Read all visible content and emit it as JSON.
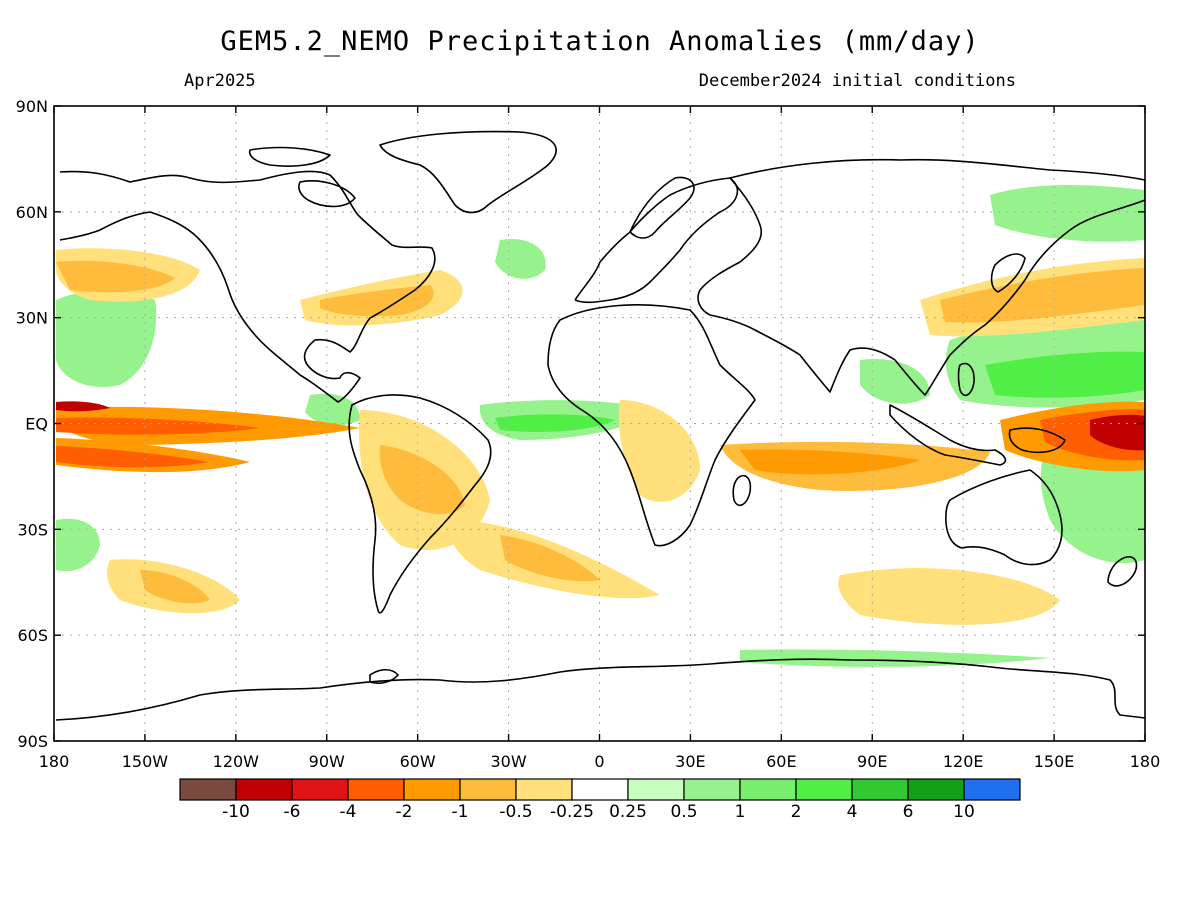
{
  "title": "GEM5.2_NEMO Precipitation Anomalies (mm/day)",
  "valid_month": "Apr2025",
  "initial_conditions": "December2024 initial conditions",
  "lat_ticks": [
    {
      "value": 90,
      "label": "90N"
    },
    {
      "value": 60,
      "label": "60N"
    },
    {
      "value": 30,
      "label": "30N"
    },
    {
      "value": 0,
      "label": "EQ"
    },
    {
      "value": -30,
      "label": "30S"
    },
    {
      "value": -60,
      "label": "60S"
    },
    {
      "value": -90,
      "label": "90S"
    }
  ],
  "lon_ticks": [
    {
      "value": -180,
      "label": "180"
    },
    {
      "value": -150,
      "label": "150W"
    },
    {
      "value": -120,
      "label": "120W"
    },
    {
      "value": -90,
      "label": "90W"
    },
    {
      "value": -60,
      "label": "60W"
    },
    {
      "value": -30,
      "label": "30W"
    },
    {
      "value": 0,
      "label": "0"
    },
    {
      "value": 30,
      "label": "30E"
    },
    {
      "value": 60,
      "label": "60E"
    },
    {
      "value": 90,
      "label": "90E"
    },
    {
      "value": 120,
      "label": "120E"
    },
    {
      "value": 150,
      "label": "150E"
    },
    {
      "value": 180,
      "label": "180"
    }
  ],
  "colorbar": {
    "colors": [
      "#7a4a3e",
      "#c00000",
      "#e01414",
      "#ff5f00",
      "#ff9b00",
      "#ffbb3c",
      "#ffe07a",
      "#ffffff",
      "#c8ffc0",
      "#96f28c",
      "#78ee6e",
      "#50ee46",
      "#32c832",
      "#14a014",
      "#1f6ff0"
    ],
    "labels": [
      "-10",
      "-6",
      "-4",
      "-2",
      "-1",
      "-0.5",
      "-0.25",
      "0.25",
      "0.5",
      "1",
      "2",
      "4",
      "6",
      "10"
    ]
  },
  "map": {
    "lon_range": [
      -180,
      180
    ],
    "lat_range": [
      -90,
      90
    ],
    "gridlines": "dotted",
    "coastlines": true
  }
}
